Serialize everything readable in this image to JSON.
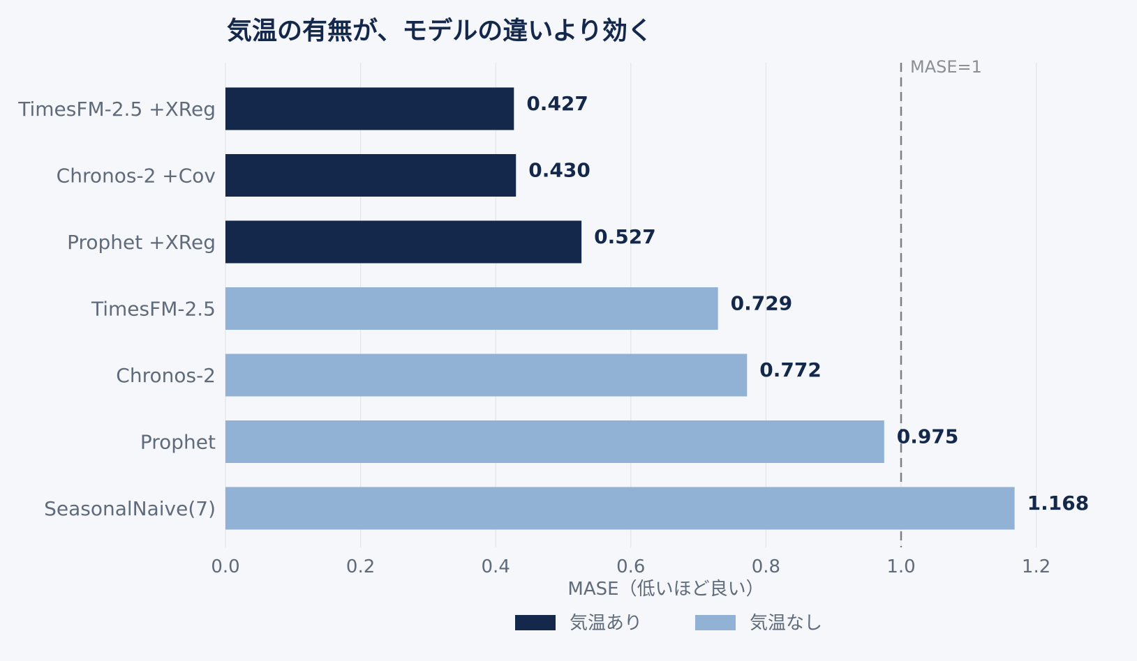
{
  "chart_data": {
    "type": "bar",
    "orientation": "horizontal",
    "title": "気温の有無が、モデルの違いより効く",
    "xlabel": "MASE（低いほど良い）",
    "ylabel": "",
    "xlim": [
      0,
      1.3
    ],
    "xticks": [
      0.0,
      0.2,
      0.4,
      0.6,
      0.8,
      1.0,
      1.2
    ],
    "xtick_labels": [
      "0.0",
      "0.2",
      "0.4",
      "0.6",
      "0.8",
      "1.0",
      "1.2"
    ],
    "grid": "vertical",
    "legend_position": "bottom-center",
    "reference_line": {
      "value": 1.0,
      "label": "MASE=1",
      "style": "dashed"
    },
    "categories": [
      "TimesFM-2.5 +XReg",
      "Chronos-2 +Cov",
      "Prophet +XReg",
      "TimesFM-2.5",
      "Chronos-2",
      "Prophet",
      "SeasonalNaive(7)"
    ],
    "values": [
      0.427,
      0.43,
      0.527,
      0.729,
      0.772,
      0.975,
      1.168
    ],
    "value_labels": [
      "0.427",
      "0.430",
      "0.527",
      "0.729",
      "0.772",
      "0.975",
      "1.168"
    ],
    "groups": [
      "気温あり",
      "気温あり",
      "気温あり",
      "気温なし",
      "気温なし",
      "気温なし",
      "気温なし"
    ],
    "legend": [
      {
        "name": "気温あり",
        "color": "#14284b"
      },
      {
        "name": "気温なし",
        "color": "#91b2d4"
      }
    ]
  }
}
